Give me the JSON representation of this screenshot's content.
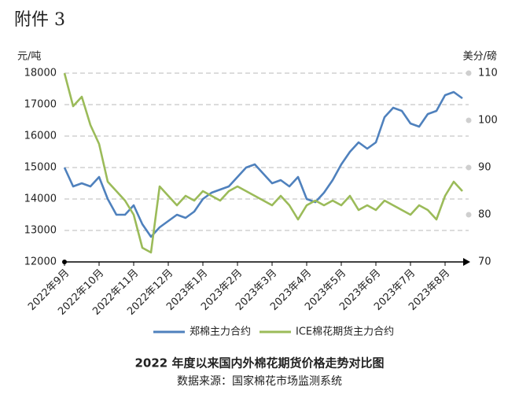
{
  "caption": "附件 3",
  "chart_data": {
    "type": "line",
    "title": "2022 年度以来国内外棉花期货价格走势对比图",
    "subtitle": "数据来源：国家棉花市场监测系统",
    "ylabel": "元/吨",
    "y2label": "美分/磅",
    "categories": [
      "2022年9月",
      null,
      null,
      null,
      "2022年10月",
      null,
      null,
      null,
      "2022年11月",
      null,
      null,
      null,
      "2022年12月",
      null,
      null,
      null,
      "2023年1月",
      null,
      null,
      null,
      "2023年2月",
      null,
      null,
      null,
      "2023年3月",
      null,
      null,
      null,
      "2023年4月",
      null,
      null,
      null,
      "2023年5月",
      null,
      null,
      null,
      "2023年6月",
      null,
      null,
      null,
      "2023年7月",
      null,
      null,
      null,
      "2023年8月",
      null,
      null
    ],
    "ylim": [
      12000,
      18000
    ],
    "yticks": [
      12000,
      13000,
      14000,
      15000,
      16000,
      17000,
      18000
    ],
    "y2lim": [
      70,
      110
    ],
    "y2ticks": [
      70,
      80,
      90,
      100,
      110
    ],
    "grid": true,
    "legend": "bottom",
    "series": [
      {
        "name": "郑棉主力合约",
        "color": "#4f81bd",
        "values": [
          15000,
          14400,
          14500,
          14400,
          14700,
          14000,
          13500,
          13500,
          13800,
          13200,
          12800,
          13100,
          13300,
          13500,
          13400,
          13600,
          14000,
          14200,
          14300,
          14400,
          14700,
          15000,
          15100,
          14800,
          14500,
          14600,
          14400,
          14700,
          14000,
          13900,
          14200,
          14600,
          15100,
          15500,
          15800,
          15600,
          15800,
          16600,
          16900,
          16800,
          16400,
          16300,
          16700,
          16800,
          17300,
          17400,
          17200
        ]
      },
      {
        "name": "ICE棉花期货主力合约",
        "color": "#9bbb59",
        "axis": "y2",
        "values": [
          110,
          103,
          105,
          99,
          95,
          87,
          85,
          83,
          80,
          73,
          72,
          86,
          84,
          82,
          84,
          83,
          85,
          84,
          83,
          85,
          86,
          85,
          84,
          83,
          82,
          84,
          82,
          79,
          82,
          83,
          82,
          83,
          82,
          84,
          81,
          82,
          81,
          83,
          82,
          81,
          80,
          82,
          81,
          79,
          84,
          87,
          85
        ]
      }
    ]
  }
}
